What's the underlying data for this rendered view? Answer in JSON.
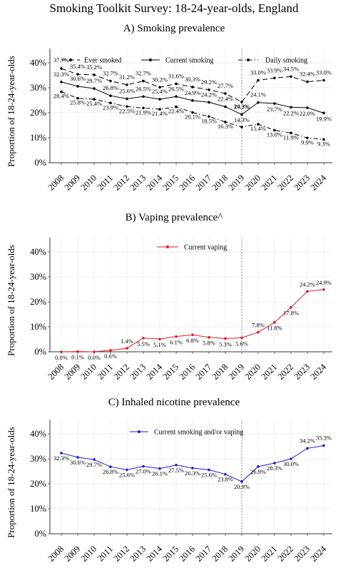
{
  "page": {
    "title": "Smoking Toolkit Survey: 18-24-year-olds, England"
  },
  "chart_data": [
    {
      "type": "line",
      "title": "A) Smoking prevalence",
      "ylabel": "Proportion of 18-24-year-olds",
      "xlabel": "",
      "ylim": [
        0,
        40
      ],
      "y_ticks": [
        "0%",
        "10%",
        "20%",
        "30%",
        "40%"
      ],
      "categories": [
        "2008",
        "2009",
        "2010",
        "2011",
        "2012",
        "2013",
        "2014",
        "2015",
        "2016",
        "2017",
        "2018",
        "2019",
        "2020",
        "2021",
        "2022",
        "2023",
        "2024"
      ],
      "grid": true,
      "legend_position": "top",
      "reference_line_x": "2019",
      "series": [
        {
          "name": "Ever smoked",
          "style": "longdash",
          "color": "#000000",
          "values": [
            37.7,
            35.4,
            35.2,
            32.7,
            31.2,
            32.7,
            30.2,
            31.6,
            30.3,
            29.2,
            27.7,
            24.3,
            33.0,
            33.9,
            34.5,
            32.4,
            33.0
          ],
          "labels": [
            "37.7%",
            "35.4%",
            "35.2%",
            "32.7%",
            "31.2%",
            "32.7%",
            "30.2%",
            "31.6%",
            "30.3%",
            "29.2%",
            "27.7%",
            "24.3%",
            "33.0%",
            "33.9%",
            "34.5%",
            "32.4%",
            "33.0%"
          ]
        },
        {
          "name": "Current smoking",
          "style": "solid",
          "color": "#000000",
          "values": [
            32.3,
            30.6,
            29.7,
            26.8,
            25.6,
            26.5,
            25.4,
            26.5,
            24.9,
            24.2,
            22.4,
            19.3,
            24.1,
            23.7,
            22.2,
            22.0,
            19.9
          ],
          "labels": [
            "32.3%",
            "30.6%",
            "29.7%",
            "26.8%",
            "25.6%",
            "26.5%",
            "25.4%",
            "26.5%",
            "24.9%",
            "24.2%",
            "22.4%",
            "19.3%",
            "24.1%",
            "23.7%",
            "22.2%",
            "22.0%",
            "19.9%"
          ]
        },
        {
          "name": "Daily smoking",
          "style": "dashdot",
          "color": "#000000",
          "values": [
            28.4,
            25.8,
            25.4,
            23.9,
            22.5,
            21.9,
            21.4,
            22.4,
            20.1,
            18.5,
            16.3,
            14.3,
            15.4,
            13.0,
            11.9,
            9.9,
            9.3
          ],
          "labels": [
            "28.4%",
            "25.8%",
            "25.4%",
            "23.9%",
            "22.5%",
            "21.9%",
            "21.4%",
            "22.4%",
            "20.1%",
            "18.5%",
            "16.3%",
            "14.3%",
            "15.4%",
            "13.0%",
            "11.9%",
            "9.9%",
            "9.3%"
          ]
        }
      ]
    },
    {
      "type": "line",
      "title": "B) Vaping prevalence^",
      "ylabel": "Proportion of 18-24-year-olds",
      "xlabel": "",
      "ylim": [
        0,
        40
      ],
      "y_ticks": [
        "0%",
        "10%",
        "20%",
        "30%",
        "40%"
      ],
      "categories": [
        "2008",
        "2009",
        "2010",
        "2011",
        "2012",
        "2013",
        "2014",
        "2015",
        "2016",
        "2017",
        "2018",
        "2019",
        "2020",
        "2021",
        "2022",
        "2023",
        "2024"
      ],
      "grid": true,
      "legend_position": "top",
      "reference_line_x": "2019",
      "series": [
        {
          "name": "Current vaping",
          "style": "solid",
          "color": "#e41a1c",
          "values": [
            0.0,
            0.1,
            0.0,
            0.6,
            1.4,
            5.5,
            5.1,
            6.1,
            6.8,
            5.8,
            5.3,
            5.6,
            7.8,
            11.8,
            17.8,
            24.2,
            24.9
          ],
          "labels": [
            "0.0%",
            "0.1%",
            "0.0%",
            "0.6%",
            "1.4%",
            "5.5%",
            "5.1%",
            "6.1%",
            "6.8%",
            "5.8%",
            "5.3%",
            "5.6%",
            "7.8%",
            "11.8%",
            "17.8%",
            "24.2%",
            "24.9%"
          ]
        }
      ]
    },
    {
      "type": "line",
      "title": "C) Inhaled nicotine prevalence",
      "ylabel": "Proportion of 18-24-year-olds",
      "xlabel": "",
      "ylim": [
        0,
        40
      ],
      "y_ticks": [
        "0%",
        "10%",
        "20%",
        "30%",
        "40%"
      ],
      "categories": [
        "2008",
        "2009",
        "2010",
        "2011",
        "2012",
        "2013",
        "2014",
        "2015",
        "2016",
        "2017",
        "2018",
        "2019",
        "2020",
        "2021",
        "2022",
        "2023",
        "2024"
      ],
      "grid": true,
      "legend_position": "top",
      "reference_line_x": "2019",
      "series": [
        {
          "name": "Current smoking and/or vaping",
          "style": "solid",
          "color": "#1a1adc",
          "values": [
            32.3,
            30.6,
            29.7,
            26.8,
            25.6,
            27.0,
            26.1,
            27.5,
            26.3,
            25.6,
            23.8,
            20.9,
            26.9,
            28.3,
            30.0,
            34.2,
            35.3
          ],
          "labels": [
            "32.3%",
            "30.6%",
            "29.7%",
            "26.8%",
            "25.6%",
            "27.0%",
            "26.1%",
            "27.5%",
            "26.3%",
            "25.6%",
            "23.8%",
            "20.9%",
            "26.9%",
            "28.3%",
            "30.0%",
            "34.2%",
            "35.3%"
          ]
        }
      ]
    }
  ]
}
